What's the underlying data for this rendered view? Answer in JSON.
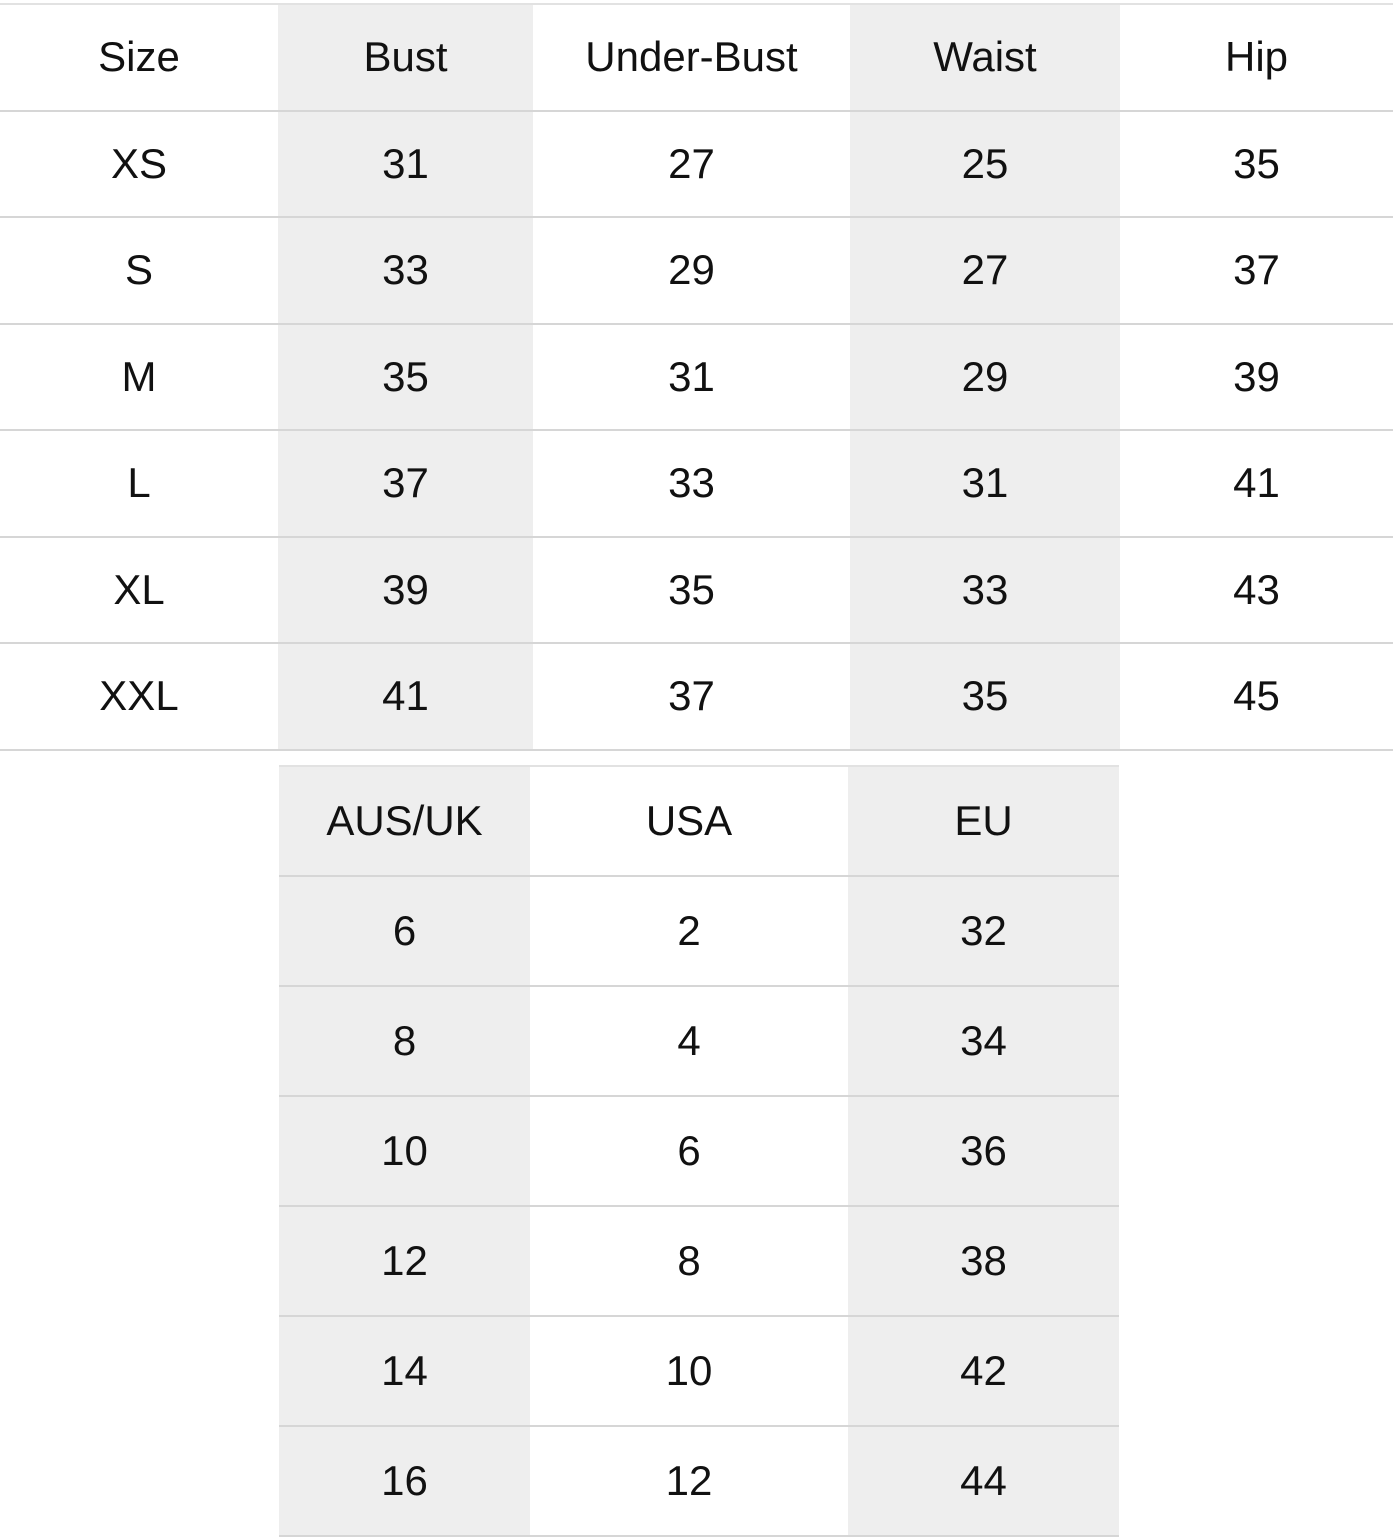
{
  "measurements": {
    "headers": [
      "Size",
      "Bust",
      "Under-Bust",
      "Waist",
      "Hip"
    ],
    "rows": [
      [
        "XS",
        "31",
        "27",
        "25",
        "35"
      ],
      [
        "S",
        "33",
        "29",
        "27",
        "37"
      ],
      [
        "M",
        "35",
        "31",
        "29",
        "39"
      ],
      [
        "L",
        "37",
        "33",
        "31",
        "41"
      ],
      [
        "XL",
        "39",
        "35",
        "33",
        "43"
      ],
      [
        "XXL",
        "41",
        "37",
        "35",
        "45"
      ]
    ]
  },
  "conversion": {
    "headers": [
      "AUS/UK",
      "USA",
      "EU"
    ],
    "rows": [
      [
        "6",
        "2",
        "32"
      ],
      [
        "8",
        "4",
        "34"
      ],
      [
        "10",
        "6",
        "36"
      ],
      [
        "12",
        "8",
        "38"
      ],
      [
        "14",
        "10",
        "42"
      ],
      [
        "16",
        "12",
        "44"
      ]
    ]
  },
  "colors": {
    "shaded_column": "#eeeeee",
    "border": "#d6d6d6",
    "text": "#111111"
  }
}
